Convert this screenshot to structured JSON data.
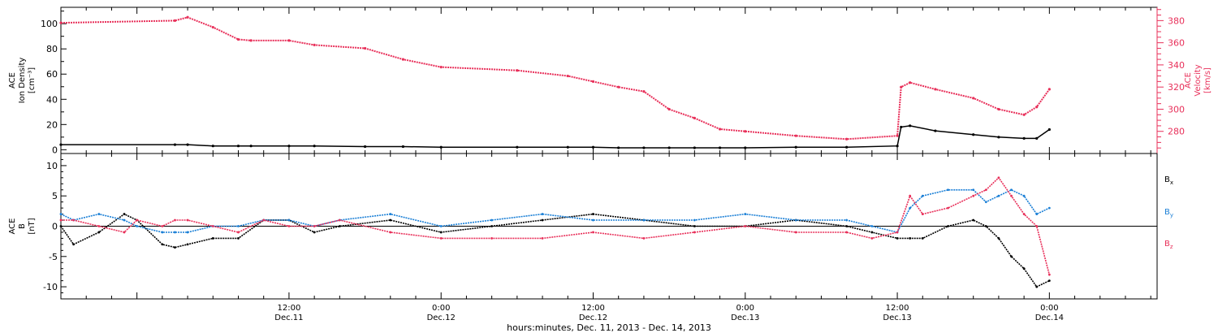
{
  "chart_data": [
    {
      "type": "scatter",
      "panel": "top",
      "ylabel_left": [
        "ACE",
        "Ion Density",
        "[cm⁻³]"
      ],
      "ylabel_right": [
        "ACE",
        "Velocity",
        "[km/s]"
      ],
      "ylim_left": [
        -3,
        113
      ],
      "ylim_right": [
        260,
        392
      ],
      "yticks_left": [
        0,
        20,
        40,
        60,
        80,
        100
      ],
      "yticks_right": [
        280,
        300,
        320,
        340,
        360,
        380
      ],
      "x_hours_from_dec11": [
        -6.0,
        3.0,
        4.0,
        6.0,
        8.0,
        9.0,
        12.0,
        14.0,
        18.0,
        21.0,
        24.0,
        30.0,
        34.0,
        36.0,
        38.0,
        40.0,
        42.0,
        44.0,
        46.0,
        48.0,
        52.0,
        56.0,
        60.0,
        60.3,
        61.0,
        63.0,
        66.0,
        68.0,
        70.0,
        71.0,
        72.0
      ],
      "series": [
        {
          "name": "Velocity",
          "axis": "right",
          "color": "#e8305a",
          "values": [
            378,
            380,
            383,
            374,
            363,
            362,
            362,
            358,
            355,
            345,
            338,
            335,
            330,
            325,
            320,
            316,
            300,
            292,
            282,
            280,
            276,
            273,
            276,
            320,
            324,
            318,
            310,
            300,
            295,
            302,
            318
          ]
        },
        {
          "name": "Ion Density",
          "axis": "left",
          "color": "#000000",
          "values": [
            4,
            4,
            4,
            3,
            3,
            3,
            3,
            3,
            2.5,
            2.5,
            2,
            2,
            2,
            2,
            1.5,
            1.5,
            1.5,
            1.5,
            1.5,
            1.5,
            2,
            2,
            3,
            18,
            19,
            15,
            12,
            10,
            9,
            9,
            16
          ]
        }
      ]
    },
    {
      "type": "line",
      "panel": "bottom",
      "ylabel": [
        "ACE",
        "B",
        "[nT]"
      ],
      "ylim": [
        -12,
        12
      ],
      "yticks": [
        -10,
        -5,
        0,
        5,
        10
      ],
      "x_hours_from_dec11": [
        -6.0,
        -5.0,
        -3.0,
        -1.0,
        0.0,
        2.0,
        3.0,
        4.0,
        6.0,
        8.0,
        10.0,
        12.0,
        14.0,
        16.0,
        20.0,
        24.0,
        28.0,
        32.0,
        36.0,
        40.0,
        44.0,
        48.0,
        52.0,
        56.0,
        58.0,
        60.0,
        61.0,
        62.0,
        64.0,
        66.0,
        67.0,
        68.0,
        69.0,
        70.0,
        71.0,
        72.0
      ],
      "series": [
        {
          "name": "Bx",
          "color": "#000000",
          "values": [
            0,
            -3,
            -1,
            2,
            1,
            -3,
            -3.5,
            -3,
            -2,
            -2,
            1,
            1,
            -1,
            0,
            1,
            -1,
            0,
            1,
            2,
            1,
            0,
            0,
            1,
            0,
            -1,
            -2,
            -2,
            -2,
            0,
            1,
            0,
            -2,
            -5,
            -7,
            -10,
            -9
          ]
        },
        {
          "name": "By",
          "color": "#1a7fd6",
          "values": [
            2,
            1,
            2,
            1,
            0,
            -1,
            -1,
            -1,
            0,
            0,
            1,
            1,
            0,
            1,
            2,
            0,
            1,
            2,
            1,
            1,
            1,
            2,
            1,
            1,
            0,
            -1,
            3,
            5,
            6,
            6,
            4,
            5,
            6,
            5,
            2,
            3
          ]
        },
        {
          "name": "Bz",
          "color": "#e8305a",
          "values": [
            1,
            1,
            0,
            -1,
            1,
            0,
            1,
            1,
            0,
            -1,
            1,
            0,
            0,
            1,
            -1,
            -2,
            -2,
            -2,
            -1,
            -2,
            -1,
            0,
            -1,
            -1,
            -2,
            -1,
            5,
            2,
            3,
            5,
            6,
            8,
            5,
            2,
            0,
            -8
          ]
        }
      ],
      "legend": [
        {
          "label": "B",
          "sub": "x",
          "color": "#000000"
        },
        {
          "label": "B",
          "sub": "y",
          "color": "#1a7fd6"
        },
        {
          "label": "B",
          "sub": "z",
          "color": "#e8305a"
        }
      ]
    }
  ],
  "x_axis": {
    "range_hours_from_dec11": [
      -6.0,
      80.5
    ],
    "ticks": [
      {
        "hour": 12,
        "time": "12:00",
        "date": "Dec.11"
      },
      {
        "hour": 24,
        "time": "0:00",
        "date": "Dec.12"
      },
      {
        "hour": 36,
        "time": "12:00",
        "date": "Dec.12"
      },
      {
        "hour": 48,
        "time": "0:00",
        "date": "Dec.13"
      },
      {
        "hour": 60,
        "time": "12:00",
        "date": "Dec.13"
      },
      {
        "hour": 72,
        "time": "0:00",
        "date": "Dec.14"
      }
    ],
    "label": "hours:minutes, Dec. 11, 2013 - Dec. 14, 2013"
  },
  "colors": {
    "velocity": "#e8305a",
    "density": "#000000",
    "bx": "#000000",
    "by": "#1a7fd6",
    "bz": "#e8305a",
    "axis": "#000000"
  }
}
